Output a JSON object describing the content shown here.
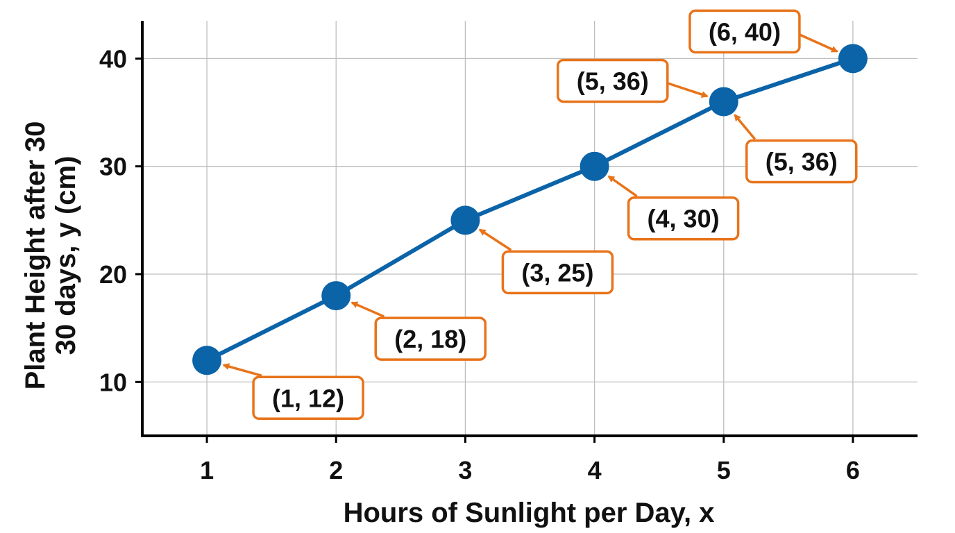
{
  "chart_data": {
    "type": "line",
    "title": "",
    "xlabel": "Hours of Sunlight per Day, x",
    "ylabel_lines": [
      "Plant Height after 30",
      "30 days, y (cm)"
    ],
    "x": [
      1,
      2,
      3,
      4,
      5,
      6
    ],
    "series": [
      {
        "values": [
          12,
          18,
          25,
          30,
          36,
          40
        ]
      }
    ],
    "xticks": [
      1,
      2,
      3,
      4,
      5,
      6
    ],
    "yticks": [
      10,
      20,
      30,
      40
    ],
    "xlim": [
      0.5,
      6.5
    ],
    "ylim": [
      5,
      43.5
    ],
    "grid": true,
    "colors": {
      "line": "#0b63a8",
      "annotation": "#e8731a",
      "axis": "#000000",
      "grid": "#bdbdbd"
    },
    "annotations": [
      {
        "text": "(1, 12)",
        "x": 1,
        "y": 12
      },
      {
        "text": "(2, 18)",
        "x": 2,
        "y": 18
      },
      {
        "text": "(3, 25)",
        "x": 3,
        "y": 25
      },
      {
        "text": "(4, 30)",
        "x": 4,
        "y": 30
      },
      {
        "text": "(5, 36)",
        "x": 5,
        "y": 36
      },
      {
        "text": "(5, 36)",
        "x": 5,
        "y": 36
      },
      {
        "text": "(6, 40)",
        "x": 6,
        "y": 40
      }
    ]
  }
}
